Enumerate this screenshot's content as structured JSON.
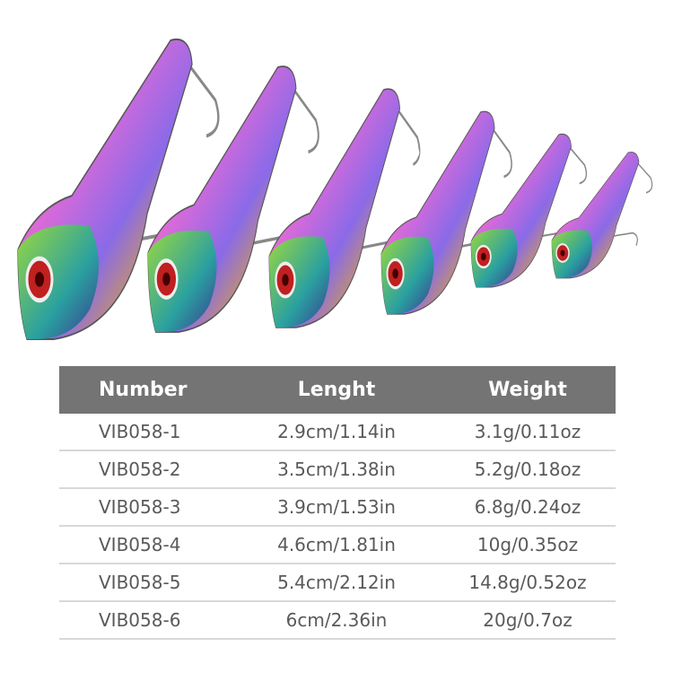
{
  "product_image": {
    "description_icon": "vib-lure-set",
    "count": 6
  },
  "table": {
    "headers": [
      "Number",
      "Lenght",
      "Weight"
    ],
    "rows": [
      [
        "VIB058-1",
        "2.9cm/1.14in",
        "3.1g/0.11oz"
      ],
      [
        "VIB058-2",
        "3.5cm/1.38in",
        "5.2g/0.18oz"
      ],
      [
        "VIB058-3",
        "3.9cm/1.53in",
        "6.8g/0.24oz"
      ],
      [
        "VIB058-4",
        "4.6cm/1.81in",
        "10g/0.35oz"
      ],
      [
        "VIB058-5",
        "5.4cm/2.12in",
        "14.8g/0.52oz"
      ],
      [
        "VIB058-6",
        "6cm/2.36in",
        "20g/0.7oz"
      ]
    ],
    "header_color": "#747474"
  }
}
